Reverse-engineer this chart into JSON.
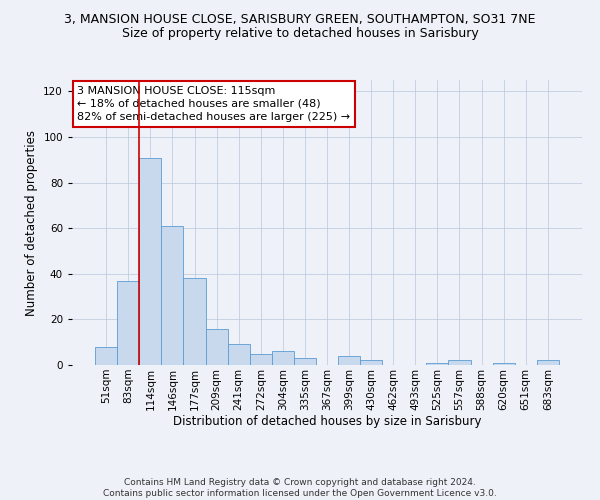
{
  "title": "3, MANSION HOUSE CLOSE, SARISBURY GREEN, SOUTHAMPTON, SO31 7NE",
  "subtitle": "Size of property relative to detached houses in Sarisbury",
  "xlabel": "Distribution of detached houses by size in Sarisbury",
  "ylabel": "Number of detached properties",
  "bar_color": "#c8d9ed",
  "bar_edge_color": "#5b9bd5",
  "bar_labels": [
    "51sqm",
    "83sqm",
    "114sqm",
    "146sqm",
    "177sqm",
    "209sqm",
    "241sqm",
    "272sqm",
    "304sqm",
    "335sqm",
    "367sqm",
    "399sqm",
    "430sqm",
    "462sqm",
    "493sqm",
    "525sqm",
    "557sqm",
    "588sqm",
    "620sqm",
    "651sqm",
    "683sqm"
  ],
  "bar_values": [
    8,
    37,
    91,
    61,
    38,
    16,
    9,
    5,
    6,
    3,
    0,
    4,
    2,
    0,
    0,
    1,
    2,
    0,
    1,
    0,
    2
  ],
  "ylim": [
    0,
    125
  ],
  "yticks": [
    0,
    20,
    40,
    60,
    80,
    100,
    120
  ],
  "vline_index": 2,
  "vline_color": "#cc0000",
  "annotation_title": "3 MANSION HOUSE CLOSE: 115sqm",
  "annotation_line1": "← 18% of detached houses are smaller (48)",
  "annotation_line2": "82% of semi-detached houses are larger (225) →",
  "annotation_box_color": "#ffffff",
  "annotation_box_edge": "#cc0000",
  "background_color": "#eef2f8",
  "footer1": "Contains HM Land Registry data © Crown copyright and database right 2024.",
  "footer2": "Contains public sector information licensed under the Open Government Licence v3.0.",
  "title_fontsize": 9,
  "subtitle_fontsize": 9,
  "axis_label_fontsize": 8.5,
  "tick_fontsize": 7.5,
  "annotation_fontsize": 8,
  "footer_fontsize": 6.5
}
